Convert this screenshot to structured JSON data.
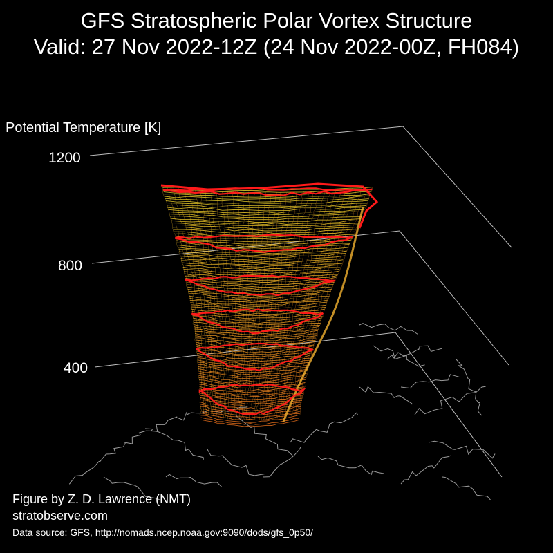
{
  "title": {
    "line1": "GFS Stratospheric Polar Vortex Structure",
    "line2": "Valid: 27 Nov 2022-12Z  (24 Nov 2022-00Z, FH084)"
  },
  "credits": {
    "author": "Figure by Z. D. Lawrence (NMT)",
    "site": "stratobserve.com",
    "source": "Data source: GFS, http://nomads.ncep.noaa.gov:9090/dods/gfs_0p50/"
  },
  "chart_data": {
    "type": "3d-isosurface",
    "zlabel": "Potential Temperature [K]",
    "z_ticks": [
      "1200",
      "800",
      "400"
    ],
    "z_tick_values": [
      1200,
      800,
      400
    ],
    "zlim": [
      400,
      1200
    ],
    "colors": {
      "background": "#000000",
      "edge_contours": "#ff1a1a",
      "surface_low": "#e06a1a",
      "surface_high": "#e8d22a",
      "coastlines": "#9a9a9a",
      "axis_lines": "#bdbdbd"
    }
  }
}
